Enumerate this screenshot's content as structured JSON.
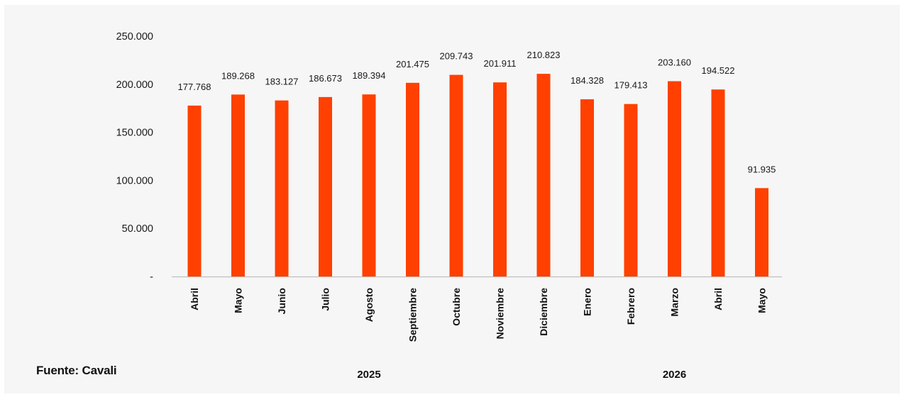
{
  "source": "Fuente: Cavali",
  "colors": {
    "bar": "#ff4000",
    "axis": "#bfbfbf",
    "background": "#f6f6f6"
  },
  "chart_data": {
    "type": "bar",
    "title": "",
    "xlabel": "",
    "ylabel": "",
    "ylim": [
      0,
      250000
    ],
    "yticks": [
      {
        "value": 0,
        "label": "-"
      },
      {
        "value": 50000,
        "label": "50.000"
      },
      {
        "value": 100000,
        "label": "100.000"
      },
      {
        "value": 150000,
        "label": "150.000"
      },
      {
        "value": 200000,
        "label": "200.000"
      },
      {
        "value": 250000,
        "label": "250.000"
      }
    ],
    "grid": false,
    "categories": [
      "Abril",
      "Mayo",
      "Junio",
      "Julio",
      "Agosto",
      "Septiembre",
      "Octubre",
      "Noviembre",
      "Diciembre",
      "Enero",
      "Febrero",
      "Marzo",
      "Abril",
      "Mayo"
    ],
    "values": [
      177768,
      189268,
      183127,
      186673,
      189394,
      201475,
      209743,
      201911,
      210823,
      184328,
      179413,
      203160,
      194522,
      91935
    ],
    "value_labels": [
      "177.768",
      "189.268",
      "183.127",
      "186.673",
      "189.394",
      "201.475",
      "209.743",
      "201.911",
      "210.823",
      "184.328",
      "179.413",
      "203.160",
      "194.522",
      "91.935"
    ],
    "year_groups": [
      {
        "label": "2025",
        "start": 0,
        "end": 8
      },
      {
        "label": "2026",
        "start": 9,
        "end": 13
      }
    ]
  }
}
